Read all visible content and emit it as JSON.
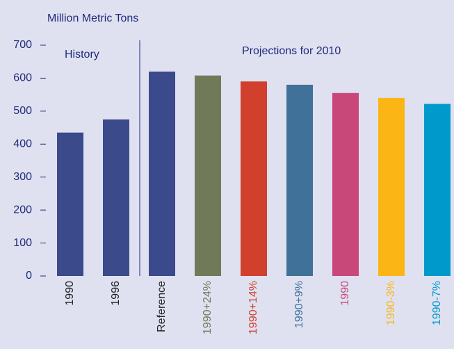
{
  "chart_data": {
    "type": "bar",
    "y_label": "Million Metric Tons",
    "annotations": [
      "History",
      "Projections for 2010"
    ],
    "categories": [
      "1990",
      "1996",
      "Reference",
      "1990+24%",
      "1990+14%",
      "1990+9%",
      "1990",
      "1990-3%",
      "1990-7%"
    ],
    "values": [
      435,
      475,
      620,
      608,
      590,
      580,
      555,
      540,
      522
    ],
    "colors": [
      "#3b4a8a",
      "#3b4a8a",
      "#3b4a8a",
      "#717a58",
      "#d0402c",
      "#3f7199",
      "#c9487a",
      "#fbb616",
      "#0099cc"
    ],
    "label_colors": [
      "#222222",
      "#222222",
      "#222222",
      "#717a58",
      "#d0402c",
      "#3f7199",
      "#c9487a",
      "#fbb616",
      "#0099cc"
    ],
    "ylim": [
      0,
      700
    ],
    "yticks": [
      0,
      100,
      200,
      300,
      400,
      500,
      600,
      700
    ],
    "grid": false
  }
}
